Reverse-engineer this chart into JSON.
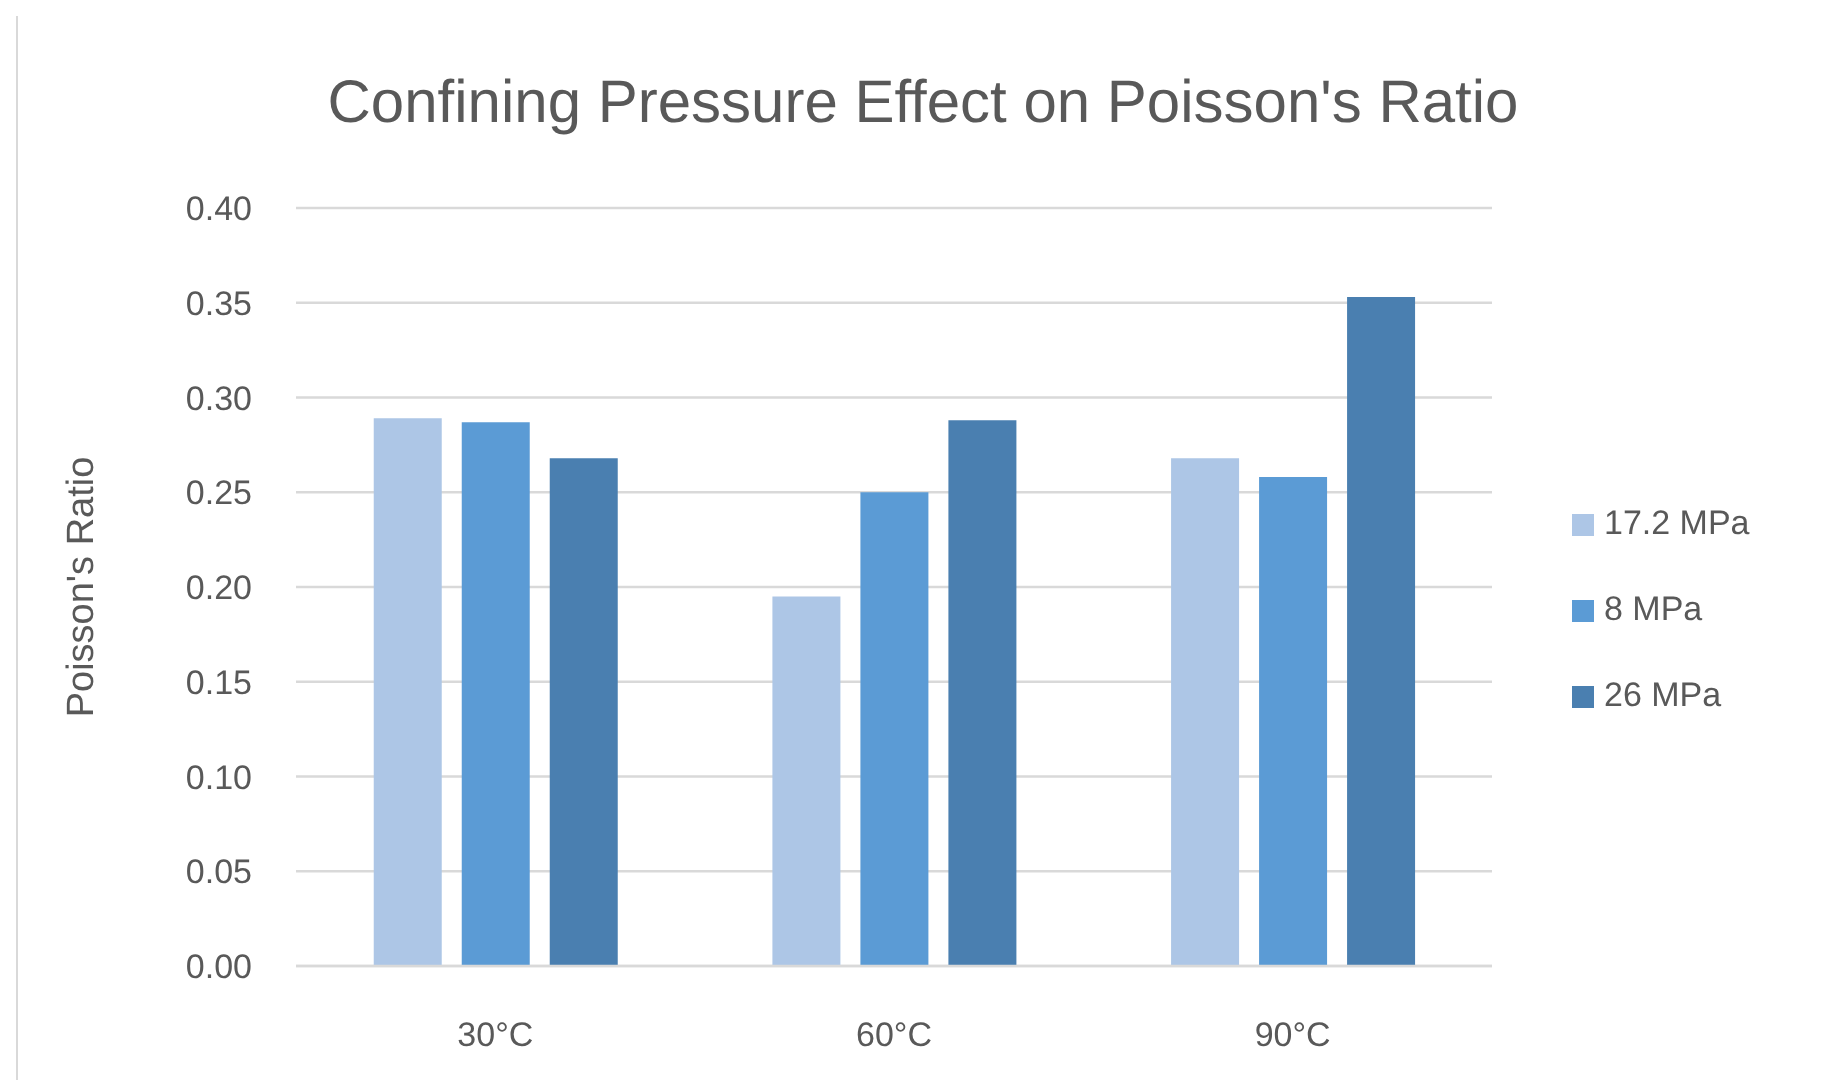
{
  "chart_data": {
    "type": "bar",
    "title": "Confining Pressure Effect on Poisson's Ratio",
    "ylabel": "Poisson's Ratio",
    "categories": [
      "30°C",
      "60°C",
      "90°C"
    ],
    "series": [
      {
        "name": "17.2 MPa",
        "color": "#adc6e6",
        "values": [
          0.289,
          0.195,
          0.268
        ]
      },
      {
        "name": "8 MPa",
        "color": "#5b9bd5",
        "values": [
          0.287,
          0.25,
          0.258
        ]
      },
      {
        "name": "26 MPa",
        "color": "#4a7fb0",
        "values": [
          0.268,
          0.288,
          0.353
        ]
      }
    ],
    "ylim": [
      0,
      0.4
    ],
    "yticks": [
      {
        "value": 0,
        "label": "0.00"
      },
      {
        "value": 0.05,
        "label": "0.05"
      },
      {
        "value": 0.1,
        "label": "0.10"
      },
      {
        "value": 0.15,
        "label": "0.15"
      },
      {
        "value": 0.2,
        "label": "0.20"
      },
      {
        "value": 0.25,
        "label": "0.25"
      },
      {
        "value": 0.3,
        "label": "0.30"
      },
      {
        "value": 0.35,
        "label": "0.35"
      },
      {
        "value": 0.4,
        "label": "0.40"
      }
    ],
    "grid": "y",
    "legend": "right"
  }
}
